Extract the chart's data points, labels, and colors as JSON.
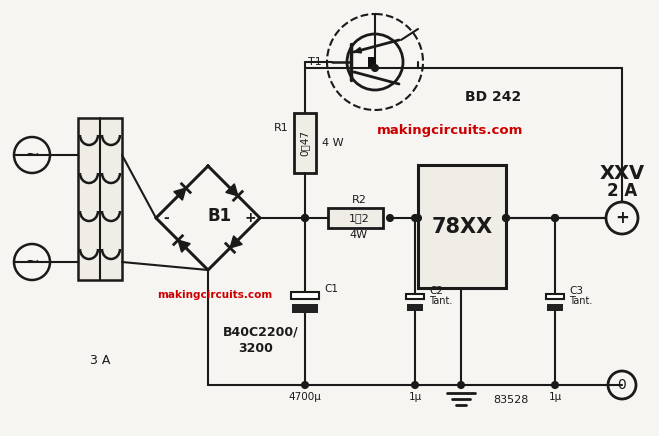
{
  "bg_color": "#f0ede6",
  "line_color": "#1a1a1a",
  "red_text_color": "#cc0000",
  "watermark1": "makingcircuits.com",
  "watermark2": "makingcircuits.com",
  "label_BD242": "BD 242",
  "label_78XX": "78XX",
  "label_B1": "B1",
  "label_B1_part": "B40C2200/\n3200",
  "label_R1": "R1",
  "label_R1_val": "0΢47",
  "label_R1_w": "4 W",
  "label_R2": "R2",
  "label_R2_val": "1΢2",
  "label_R2_w": "4W",
  "label_C1": "C1",
  "label_C1_val": "4700μ",
  "label_C2": "C2",
  "label_C2_val": "1μ",
  "label_C2_tant": "Tant.",
  "label_C3": "C3",
  "label_C3_val": "1μ",
  "label_C3_tant": "Tant.",
  "label_T1": "T1",
  "label_3A": "3 A",
  "label_XXV": "XXV",
  "label_2A": "2 A",
  "label_plus": "+",
  "label_zero": "0",
  "label_83528": "83528",
  "label_b1_minus": "-",
  "label_b1_plus": "+"
}
